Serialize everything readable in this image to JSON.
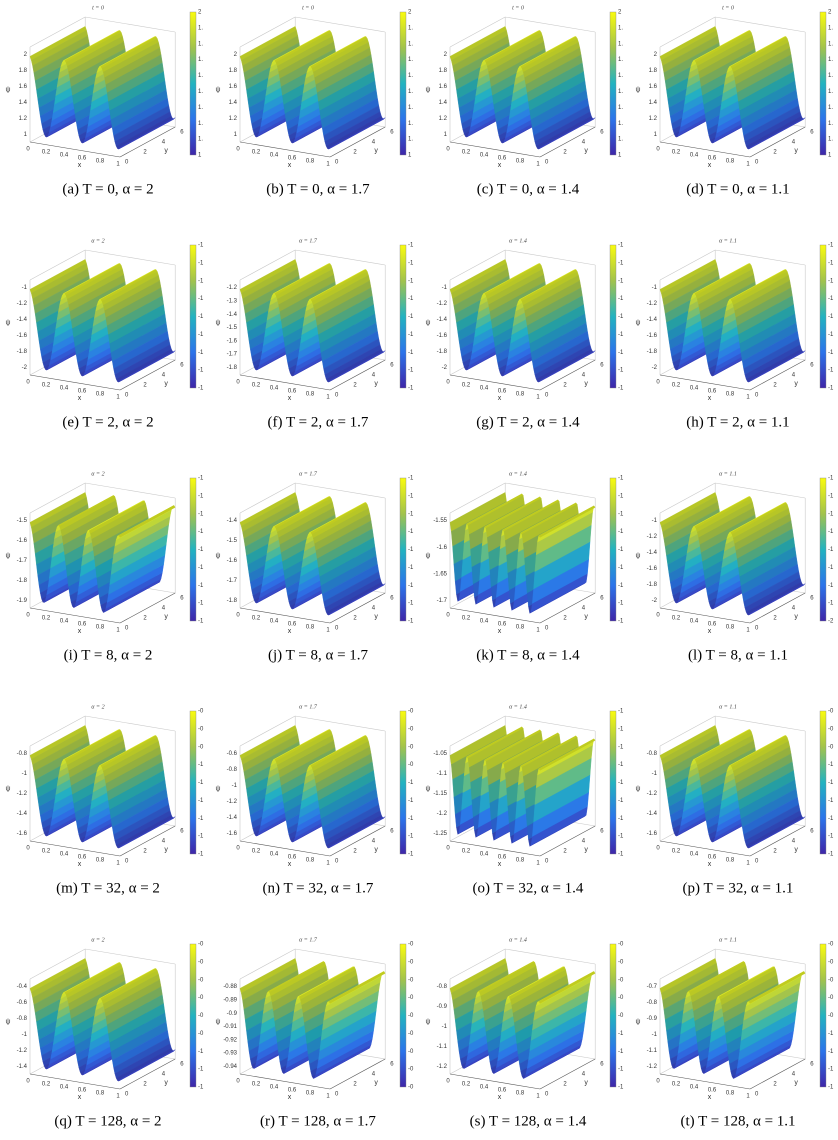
{
  "axes": {
    "x_label": "x",
    "y_label": "y",
    "z_label": "ψ",
    "x_ticks": [
      "0",
      "0.2",
      "0.4",
      "0.6",
      "0.8",
      "1"
    ],
    "y_ticks": [
      "0",
      "2",
      "4",
      "6"
    ]
  },
  "panels": [
    {
      "title": "t = 0",
      "caption": "(a) T = 0, α = 2",
      "z_ticks": [
        "1",
        "1.2",
        "1.4",
        "1.6",
        "1.8",
        "2"
      ],
      "colorbar_ticks": [
        "1",
        "1.",
        "1.",
        "1.",
        "1.",
        "1.",
        "1.",
        "1.",
        "1.",
        "2"
      ]
    },
    {
      "title": "t = 0",
      "caption": "(b) T = 0, α = 1.7",
      "z_ticks": [
        "1",
        "1.2",
        "1.4",
        "1.6",
        "1.8",
        "2"
      ],
      "colorbar_ticks": [
        "1",
        "1.",
        "1.",
        "1.",
        "1.",
        "1.",
        "1.",
        "1.",
        "1.",
        "2"
      ]
    },
    {
      "title": "t = 0",
      "caption": "(c) T = 0, α = 1.4",
      "z_ticks": [
        "1",
        "1.2",
        "1.4",
        "1.6",
        "1.8",
        "2"
      ],
      "colorbar_ticks": [
        "1",
        "1.",
        "1.",
        "1.",
        "1.",
        "1.",
        "1.",
        "1.",
        "1.",
        "2"
      ]
    },
    {
      "title": "t = 0",
      "caption": "(d) T = 0, α = 1.1",
      "z_ticks": [
        "1",
        "1.2",
        "1.4",
        "1.6",
        "1.8",
        "2"
      ],
      "colorbar_ticks": [
        "1",
        "1.",
        "1.",
        "1.",
        "1.",
        "1.",
        "1.",
        "1.",
        "1.",
        "2"
      ]
    },
    {
      "title": "α = 2",
      "caption": "(e) T = 2, α = 2",
      "z_ticks": [
        "-2",
        "-1.8",
        "-1.6",
        "-1.4",
        "-1.2",
        "-1"
      ],
      "colorbar_ticks": [
        "-1",
        "-1",
        "-1",
        "-1",
        "-1",
        "-1",
        "-1",
        "-1",
        "-1"
      ]
    },
    {
      "title": "α = 1.7",
      "caption": "(f) T = 2, α = 1.7",
      "z_ticks": [
        "-1.8",
        "-1.7",
        "-1.6",
        "-1.5",
        "-1.4",
        "-1.3",
        "-1.2"
      ],
      "colorbar_ticks": [
        "-1",
        "-1",
        "-1",
        "-1",
        "-1",
        "-1",
        "-1",
        "-1",
        "-1"
      ]
    },
    {
      "title": "α = 1.4",
      "caption": "(g) T = 2, α = 1.4",
      "z_ticks": [
        "-2",
        "-1.8",
        "-1.6",
        "-1.4",
        "-1.2",
        "-1"
      ],
      "colorbar_ticks": [
        "-1",
        "-1",
        "-1",
        "-1",
        "-1",
        "-1",
        "-1",
        "-1",
        "-1"
      ]
    },
    {
      "title": "α = 1.1",
      "caption": "(h) T = 2, α = 1.1",
      "z_ticks": [
        "-2",
        "-1.8",
        "-1.6",
        "-1.4",
        "-1.2",
        "-1"
      ],
      "colorbar_ticks": [
        "-1",
        "-1",
        "-1",
        "-1",
        "-1",
        "-1",
        "-1",
        "-1",
        "-1"
      ]
    },
    {
      "title": "α = 2",
      "caption": "(i) T = 8, α = 2",
      "z_ticks": [
        "-1.9",
        "-1.8",
        "-1.7",
        "-1.6",
        "-1.5"
      ],
      "colorbar_ticks": [
        "-1",
        "-1",
        "-1",
        "-1",
        "-1",
        "-1",
        "-1",
        "-1",
        "-1"
      ]
    },
    {
      "title": "α = 1.7",
      "caption": "(j) T = 8, α = 1.7",
      "z_ticks": [
        "-1.8",
        "-1.7",
        "-1.6",
        "-1.5",
        "-1.4"
      ],
      "colorbar_ticks": [
        "-1",
        "-1",
        "-1",
        "-1",
        "-1",
        "-1",
        "-1",
        "-1",
        "-1"
      ]
    },
    {
      "title": "α = 1.4",
      "caption": "(k) T = 8, α = 1.4",
      "z_ticks": [
        "-1.7",
        "-1.65",
        "-1.6",
        "-1.55"
      ],
      "colorbar_ticks": [
        "-1",
        "-1",
        "-1",
        "-1",
        "-1",
        "-1",
        "-1",
        "-1",
        "-1"
      ]
    },
    {
      "title": "α = 1.1",
      "caption": "(l) T = 8, α = 1.1",
      "z_ticks": [
        "-2",
        "-1.8",
        "-1.6",
        "-1.4",
        "-1.2",
        "-1"
      ],
      "colorbar_ticks": [
        "-2",
        "-1",
        "-1",
        "-1",
        "-1",
        "-1",
        "-1",
        "-1",
        "-1"
      ]
    },
    {
      "title": "α = 2",
      "caption": "(m) T = 32, α = 2",
      "z_ticks": [
        "-1.6",
        "-1.4",
        "-1.2",
        "-1",
        "-0.8"
      ],
      "colorbar_ticks": [
        "-1",
        "-1",
        "-1",
        "-1",
        "-1",
        "-1",
        "-0",
        "-0",
        "-0"
      ]
    },
    {
      "title": "α = 1.7",
      "caption": "(n) T = 32, α = 1.7",
      "z_ticks": [
        "-1.6",
        "-1.4",
        "-1.2",
        "-1",
        "-0.8",
        "-0.6"
      ],
      "colorbar_ticks": [
        "-1",
        "-1",
        "-1",
        "-1",
        "-1",
        "-0",
        "-0",
        "-0",
        "-0"
      ]
    },
    {
      "title": "α = 1.4",
      "caption": "(o) T = 32, α = 1.4",
      "z_ticks": [
        "-1.25",
        "-1.2",
        "-1.15",
        "-1.1",
        "-1.05"
      ],
      "colorbar_ticks": [
        "-1",
        "-1",
        "-1",
        "-1",
        "-1",
        "-1",
        "-1",
        "-1",
        "-1"
      ]
    },
    {
      "title": "α = 1.1",
      "caption": "(p) T = 32, α = 1.1",
      "z_ticks": [
        "-1.6",
        "-1.4",
        "-1.2",
        "-1",
        "-0.8"
      ],
      "colorbar_ticks": [
        "-1",
        "-1",
        "-1",
        "-1",
        "-1",
        "-1",
        "-0",
        "-0",
        "-0"
      ]
    },
    {
      "title": "α = 2",
      "caption": "(q) T = 128, α = 2",
      "z_ticks": [
        "-1.4",
        "-1.2",
        "-1",
        "-0.8",
        "-0.6",
        "-0.4"
      ],
      "colorbar_ticks": [
        "-1",
        "-1",
        "-1",
        "-0",
        "-0",
        "-0",
        "-0",
        "-0",
        "-0"
      ]
    },
    {
      "title": "α = 1.7",
      "caption": "(r) T = 128, α = 1.7",
      "z_ticks": [
        "-0.94",
        "-0.93",
        "-0.92",
        "-0.91",
        "-0.9",
        "-0.89",
        "-0.88"
      ],
      "colorbar_ticks": [
        "-0",
        "-0",
        "-0",
        "-0",
        "-0",
        "-0",
        "-0",
        "-0",
        "-0"
      ]
    },
    {
      "title": "α = 1.4",
      "caption": "(s) T = 128, α = 1.4",
      "z_ticks": [
        "-1.2",
        "-1.1",
        "-1",
        "-0.9",
        "-0.8"
      ],
      "colorbar_ticks": [
        "-1",
        "-1",
        "-1",
        "-1",
        "-0",
        "-0",
        "-0",
        "-0",
        "-0"
      ]
    },
    {
      "title": "α = 1.1",
      "caption": "(t) T = 128, α = 1.1",
      "z_ticks": [
        "-1.2",
        "-1.1",
        "-1",
        "-0.9",
        "-0.8",
        "-0.7"
      ],
      "colorbar_ticks": [
        "-1",
        "-1",
        "-1",
        "-1",
        "-0",
        "-0",
        "-0",
        "-0",
        "-0"
      ]
    }
  ]
}
